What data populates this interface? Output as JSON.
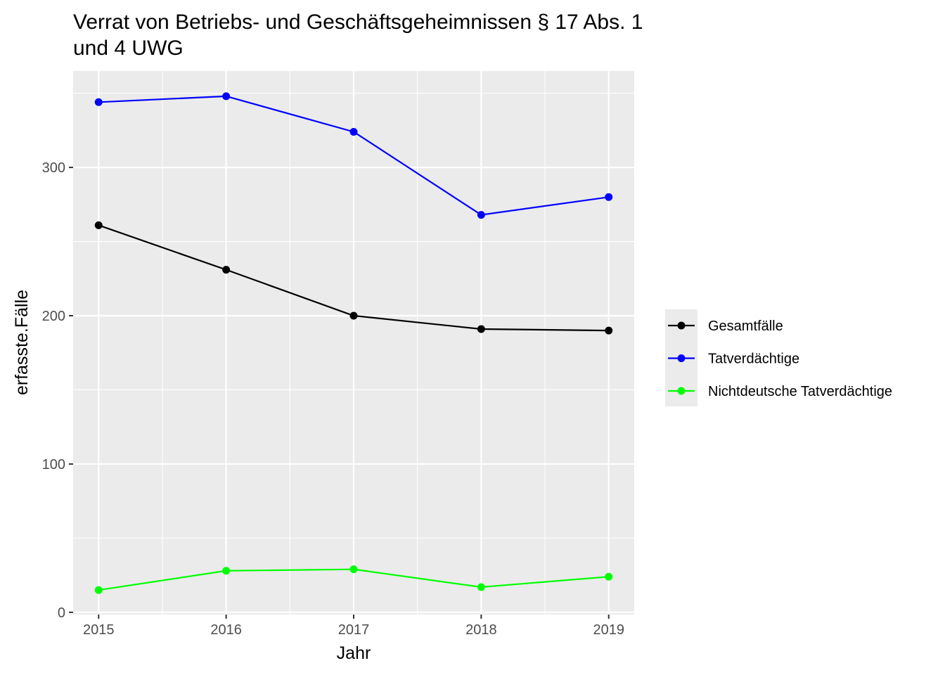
{
  "chart_data": {
    "type": "line",
    "title_lines": [
      "Verrat von Betriebs- und Geschäftsgeheimnissen § 17 Abs. 1",
      "und 4 UWG"
    ],
    "xlabel": "Jahr",
    "ylabel": "erfasste.Fälle",
    "x": [
      2015,
      2016,
      2017,
      2018,
      2019
    ],
    "x_tick_labels": [
      "2015",
      "2016",
      "2017",
      "2018",
      "2019"
    ],
    "y_ticks": [
      0,
      100,
      200,
      300
    ],
    "y_tick_labels": [
      "0",
      "100",
      "200",
      "300"
    ],
    "xlim": [
      2014.8,
      2019.2
    ],
    "ylim": [
      -1.5,
      365
    ],
    "grid": true,
    "legend_position": "right",
    "series": [
      {
        "name": "Gesamtfälle",
        "color": "#000000",
        "values": [
          261,
          231,
          200,
          191,
          190
        ]
      },
      {
        "name": "Tatverdächtige",
        "color": "#0000ff",
        "values": [
          344,
          348,
          324,
          268,
          280
        ]
      },
      {
        "name": "Nichtdeutsche Tatverdächtige",
        "color": "#00ff00",
        "values": [
          15,
          28,
          29,
          17,
          24
        ]
      }
    ]
  }
}
